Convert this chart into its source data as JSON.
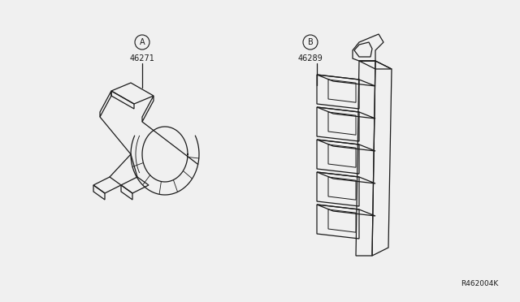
{
  "bg_color": "#f0f0f0",
  "line_color": "#1a1a1a",
  "text_color": "#1a1a1a",
  "label_A": "A",
  "label_B": "B",
  "part_A": "46271",
  "part_B": "46289",
  "ref_code": "R462004K",
  "lw": 0.9,
  "font_size_label": 7,
  "font_size_part": 7,
  "font_size_ref": 6.5
}
